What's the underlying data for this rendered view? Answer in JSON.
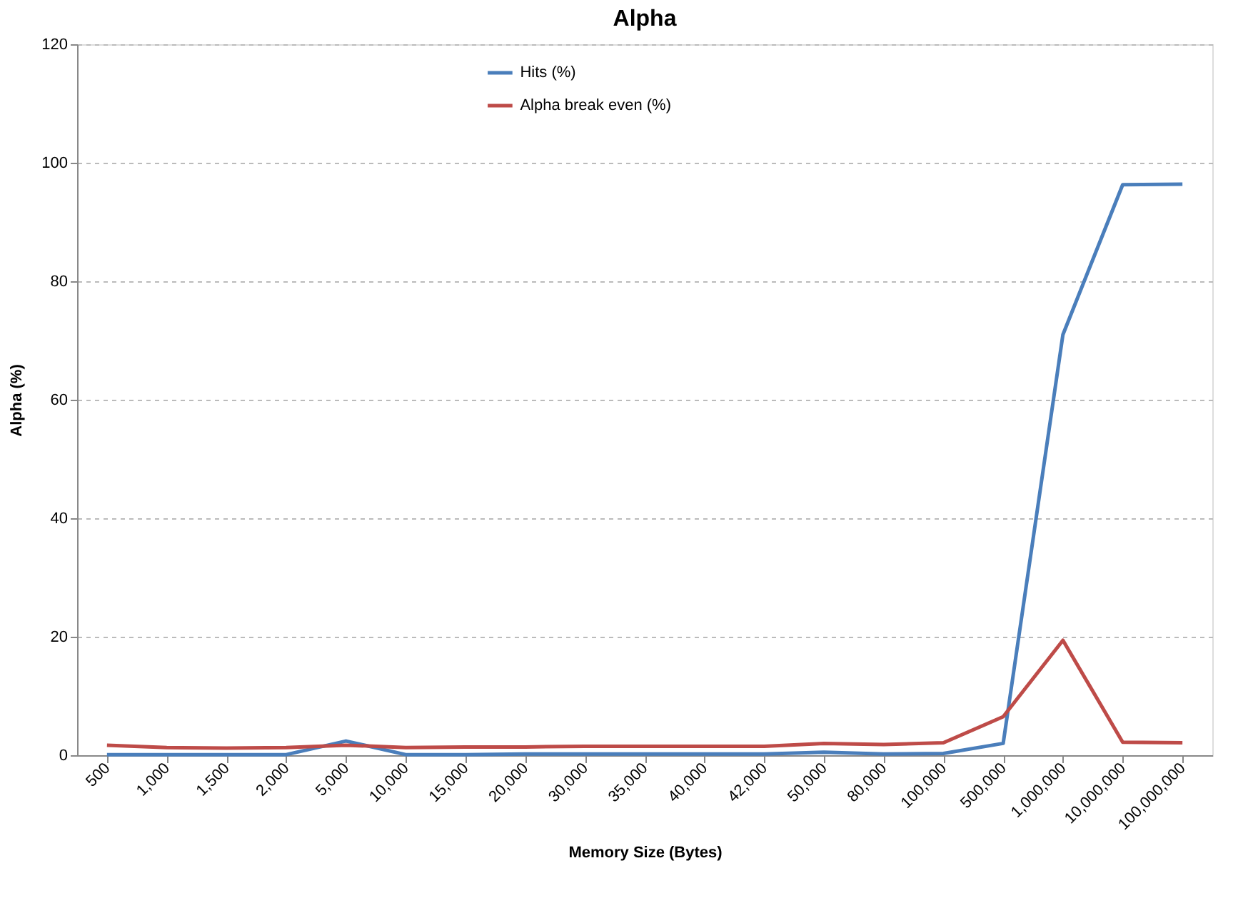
{
  "chart_data": {
    "type": "line",
    "title": "Alpha",
    "xlabel": "Memory Size (Bytes)",
    "ylabel": "Alpha (%)",
    "categories": [
      "500",
      "1,000",
      "1,500",
      "2,000",
      "5,000",
      "10,000",
      "15,000",
      "20,000",
      "30,000",
      "35,000",
      "40,000",
      "42,000",
      "50,000",
      "80,000",
      "100,000",
      "500,000",
      "1,000,000",
      "10,000,000",
      "100,000,000"
    ],
    "series": [
      {
        "name": "Hits (%)",
        "color": "#4a7ebb",
        "values": [
          0.1,
          0.1,
          0.1,
          0.1,
          2.4,
          0.1,
          0.1,
          0.2,
          0.2,
          0.2,
          0.2,
          0.2,
          0.5,
          0.2,
          0.3,
          2.0,
          71,
          96.3,
          96.4
        ]
      },
      {
        "name": "Alpha break even (%)",
        "color": "#be4b48",
        "values": [
          1.7,
          1.3,
          1.2,
          1.3,
          1.7,
          1.3,
          1.4,
          1.4,
          1.5,
          1.5,
          1.5,
          1.5,
          2.0,
          1.8,
          2.1,
          6.5,
          19.4,
          2.2,
          2.1
        ]
      }
    ],
    "ylim": [
      0,
      120
    ],
    "yticks": [
      0,
      20,
      40,
      60,
      80,
      100,
      120
    ],
    "grid": "y",
    "legend": "top",
    "marker": "none",
    "line_style": "solid"
  }
}
